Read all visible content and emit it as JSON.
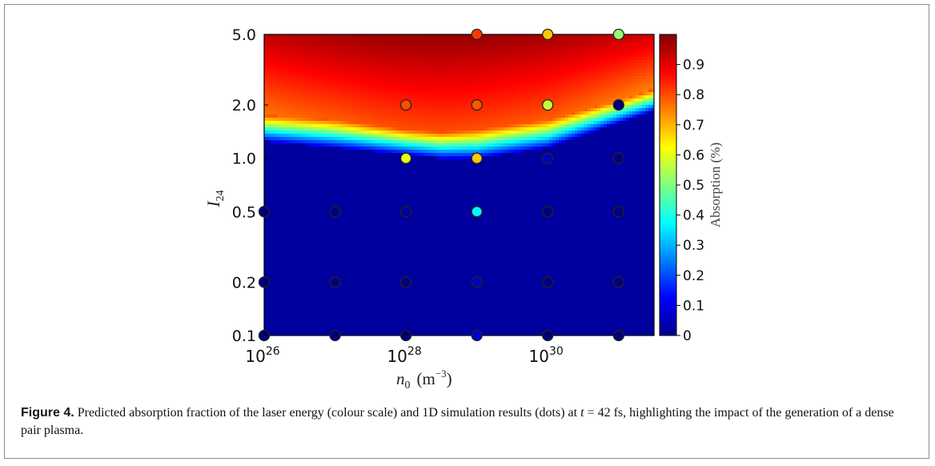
{
  "chart_data": {
    "type": "heatmap",
    "title": "",
    "x_scale": "log",
    "y_scale": "log",
    "xlim": [
      1e+26,
      3.16e+31
    ],
    "ylim": [
      0.1,
      5.0
    ],
    "xlabel_main": "n",
    "xlabel_sub": "0",
    "xlabel_unit_open": "(m",
    "xlabel_unit_exp": "−3",
    "xlabel_unit_close": ")",
    "ylabel_main": "I",
    "ylabel_sub": "24",
    "x_ticks": [
      {
        "value": 1e+26,
        "base": "10",
        "exp": "26"
      },
      {
        "value": 1e+28,
        "base": "10",
        "exp": "28"
      },
      {
        "value": 1e+30,
        "base": "10",
        "exp": "30"
      }
    ],
    "y_ticks": [
      {
        "value": 0.1,
        "label": "0.1"
      },
      {
        "value": 0.2,
        "label": "0.2"
      },
      {
        "value": 0.5,
        "label": "0.5"
      },
      {
        "value": 1.0,
        "label": "1.0"
      },
      {
        "value": 2.0,
        "label": "2.0"
      },
      {
        "value": 5.0,
        "label": "5.0"
      }
    ],
    "colorbar": {
      "label": "Absorption (%)",
      "range": [
        0,
        1.0
      ],
      "ticks": [
        "0",
        "0.1",
        "0.2",
        "0.3",
        "0.4",
        "0.5",
        "0.6",
        "0.7",
        "0.8",
        "0.9"
      ],
      "tick_values": [
        0,
        0.1,
        0.2,
        0.3,
        0.4,
        0.5,
        0.6,
        0.7,
        0.8,
        0.9
      ]
    },
    "colormap": "jet",
    "absorption_threshold_I24_by_n0": [
      {
        "n0": 1e+26,
        "I24_low": 1.25,
        "I24_high": 1.75
      },
      {
        "n0": 1e+27,
        "I24_low": 1.15,
        "I24_high": 1.65
      },
      {
        "n0": 1e+28,
        "I24_low": 1.05,
        "I24_high": 1.45
      },
      {
        "n0": 3.16e+28,
        "I24_low": 1.0,
        "I24_high": 1.4
      },
      {
        "n0": 1e+29,
        "I24_low": 1.0,
        "I24_high": 1.45
      },
      {
        "n0": 1e+30,
        "I24_low": 1.15,
        "I24_high": 1.65
      },
      {
        "n0": 3.16e+31,
        "I24_low": 1.85,
        "I24_high": 2.45
      }
    ],
    "simulation_points": [
      {
        "n0": 1e+26,
        "I24": 0.1,
        "absorption": 0.0
      },
      {
        "n0": 1e+26,
        "I24": 0.2,
        "absorption": 0.0
      },
      {
        "n0": 1e+26,
        "I24": 0.5,
        "absorption": 0.0
      },
      {
        "n0": 1e+27,
        "I24": 0.1,
        "absorption": 0.0
      },
      {
        "n0": 1e+27,
        "I24": 0.2,
        "absorption": 0.0
      },
      {
        "n0": 1e+27,
        "I24": 0.5,
        "absorption": 0.0
      },
      {
        "n0": 1e+28,
        "I24": 0.1,
        "absorption": 0.0
      },
      {
        "n0": 1e+28,
        "I24": 0.2,
        "absorption": 0.0
      },
      {
        "n0": 1e+28,
        "I24": 0.5,
        "absorption": 0.03
      },
      {
        "n0": 1e+28,
        "I24": 1.0,
        "absorption": 0.6
      },
      {
        "n0": 1e+28,
        "I24": 2.0,
        "absorption": 0.8
      },
      {
        "n0": 1e+29,
        "I24": 0.1,
        "absorption": 0.08
      },
      {
        "n0": 1e+29,
        "I24": 0.2,
        "absorption": 0.06
      },
      {
        "n0": 1e+29,
        "I24": 0.5,
        "absorption": 0.37
      },
      {
        "n0": 1e+29,
        "I24": 1.0,
        "absorption": 0.68
      },
      {
        "n0": 1e+29,
        "I24": 2.0,
        "absorption": 0.79
      },
      {
        "n0": 1e+29,
        "I24": 5.0,
        "absorption": 0.82
      },
      {
        "n0": 1e+30,
        "I24": 0.1,
        "absorption": 0.0
      },
      {
        "n0": 1e+30,
        "I24": 0.2,
        "absorption": 0.0
      },
      {
        "n0": 1e+30,
        "I24": 0.5,
        "absorption": 0.0
      },
      {
        "n0": 1e+30,
        "I24": 1.0,
        "absorption": 0.06
      },
      {
        "n0": 1e+30,
        "I24": 2.0,
        "absorption": 0.57
      },
      {
        "n0": 1e+30,
        "I24": 5.0,
        "absorption": 0.68
      },
      {
        "n0": 1e+31,
        "I24": 0.1,
        "absorption": 0.0
      },
      {
        "n0": 1e+31,
        "I24": 0.2,
        "absorption": 0.0
      },
      {
        "n0": 1e+31,
        "I24": 0.5,
        "absorption": 0.0
      },
      {
        "n0": 1e+31,
        "I24": 1.0,
        "absorption": 0.0
      },
      {
        "n0": 1e+31,
        "I24": 2.0,
        "absorption": 0.0
      },
      {
        "n0": 1e+31,
        "I24": 5.0,
        "absorption": 0.52
      }
    ]
  },
  "caption": {
    "label": "Figure 4.",
    "text_1": " Predicted absorption fraction of the laser energy (colour scale) and 1D simulation results (dots) at ",
    "t_symbol": "t",
    "text_2": " = 42 fs, highlighting the impact of the generation of a dense pair plasma."
  }
}
